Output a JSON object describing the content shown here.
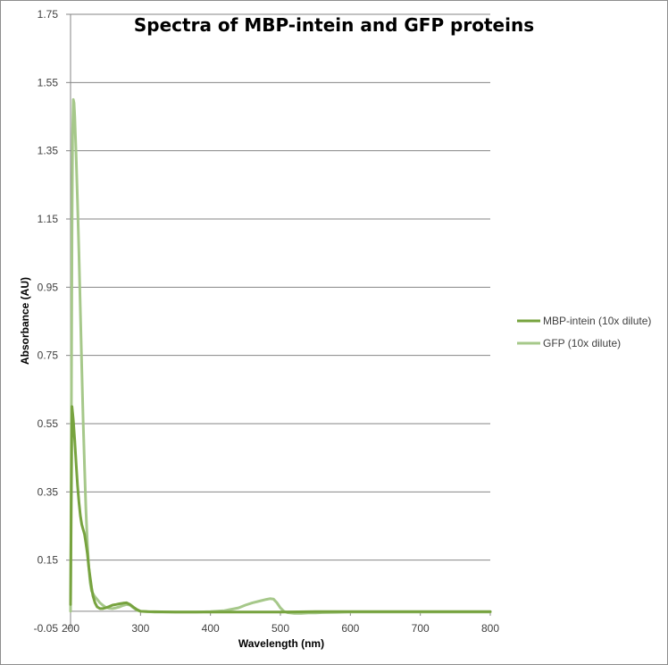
{
  "chart_data": {
    "type": "line",
    "title": "Spectra of MBP-intein and GFP proteins",
    "xlabel": "Wavelength (nm)",
    "ylabel": "Absorbance (AU)",
    "xlim": [
      200,
      800
    ],
    "ylim": [
      -0.05,
      1.75
    ],
    "xticks": [
      200,
      300,
      400,
      500,
      600,
      700,
      800
    ],
    "yticks": [
      -0.05,
      0.15,
      0.35,
      0.55,
      0.75,
      0.95,
      1.15,
      1.35,
      1.55,
      1.75
    ],
    "ytick_labels": [
      "-0.05",
      "0.15",
      "0.35",
      "0.55",
      "0.75",
      "0.95",
      "1.15",
      "1.35",
      "1.55",
      "1.75"
    ],
    "xtick_labels": [
      "200",
      "300",
      "400",
      "500",
      "600",
      "700",
      "800"
    ],
    "grid": "horizontal",
    "legend_position": "right",
    "series": [
      {
        "name": "MBP-intein (10x dilute)",
        "color": "#77a33f",
        "x": [
          200,
          202,
          204,
          206,
          208,
          210,
          212,
          214,
          216,
          218,
          220,
          222,
          224,
          226,
          228,
          230,
          232,
          235,
          238,
          242,
          246,
          250,
          255,
          260,
          265,
          270,
          275,
          280,
          285,
          290,
          295,
          300,
          310,
          350,
          400,
          450,
          500,
          550,
          600,
          650,
          700,
          750,
          800
        ],
        "y": [
          0.02,
          0.6,
          0.56,
          0.5,
          0.43,
          0.37,
          0.32,
          0.28,
          0.255,
          0.24,
          0.225,
          0.2,
          0.17,
          0.13,
          0.1,
          0.07,
          0.045,
          0.025,
          0.013,
          0.008,
          0.008,
          0.01,
          0.014,
          0.018,
          0.02,
          0.022,
          0.024,
          0.025,
          0.02,
          0.012,
          0.005,
          0.0,
          -0.001,
          -0.002,
          -0.002,
          -0.002,
          -0.002,
          -0.001,
          -0.001,
          -0.001,
          -0.001,
          -0.001,
          -0.001
        ]
      },
      {
        "name": "GFP (10x dilute)",
        "color": "#a6c88a",
        "x": [
          200,
          201,
          202,
          203,
          204,
          205,
          206,
          207,
          208,
          210,
          212,
          214,
          216,
          218,
          220,
          222,
          224,
          226,
          228,
          230,
          234,
          238,
          242,
          246,
          250,
          255,
          260,
          265,
          270,
          275,
          280,
          285,
          290,
          295,
          300,
          320,
          350,
          380,
          400,
          420,
          440,
          450,
          460,
          470,
          480,
          485,
          490,
          495,
          500,
          505,
          510,
          520,
          530,
          540,
          550,
          560,
          580,
          600,
          650,
          700,
          750,
          800
        ],
        "y": [
          0.0,
          0.5,
          1.1,
          1.4,
          1.5,
          1.49,
          1.45,
          1.39,
          1.33,
          1.2,
          1.05,
          0.88,
          0.72,
          0.56,
          0.42,
          0.3,
          0.2,
          0.13,
          0.085,
          0.06,
          0.045,
          0.035,
          0.025,
          0.018,
          0.012,
          0.009,
          0.008,
          0.01,
          0.013,
          0.017,
          0.02,
          0.018,
          0.01,
          0.003,
          0.0,
          -0.002,
          -0.002,
          -0.002,
          -0.001,
          0.002,
          0.01,
          0.018,
          0.025,
          0.03,
          0.035,
          0.037,
          0.036,
          0.025,
          0.01,
          0.0,
          -0.004,
          -0.006,
          -0.006,
          -0.005,
          -0.005,
          -0.004,
          -0.003,
          -0.002,
          -0.002,
          -0.002,
          -0.002,
          -0.002
        ]
      }
    ]
  }
}
